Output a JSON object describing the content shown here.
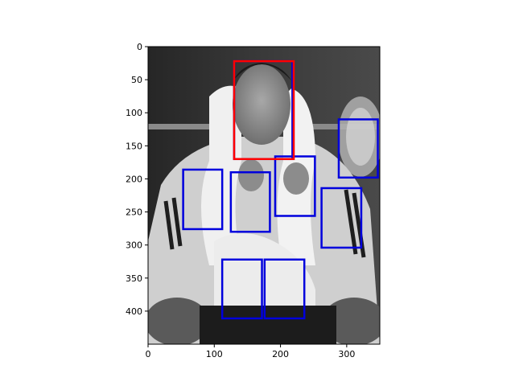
{
  "chart_data": {
    "type": "image-with-bounding-boxes",
    "title": "",
    "xlabel": "",
    "ylabel": "",
    "image": {
      "name": "grayscale-photo",
      "width": 350,
      "height": 450
    },
    "xlim": [
      0,
      350
    ],
    "ylim": [
      450,
      0
    ],
    "y_axis_inverted": true,
    "x_ticks": [
      0,
      100,
      200,
      300
    ],
    "y_ticks": [
      0,
      50,
      100,
      150,
      200,
      250,
      300,
      350,
      400
    ],
    "grid": false,
    "legend": "none",
    "colors": {
      "red_box": "#ff0000",
      "blue_box": "#0000dd",
      "axis": "#000000",
      "tick_label": "#000000"
    },
    "boxes": [
      {
        "color": "red",
        "x0": 130,
        "y0": 22,
        "x1": 220,
        "y1": 170
      },
      {
        "color": "blue",
        "x0": 130,
        "y0": 22,
        "x1": 218,
        "y1": 170
      },
      {
        "color": "blue",
        "x0": 288,
        "y0": 110,
        "x1": 347,
        "y1": 198
      },
      {
        "color": "blue",
        "x0": 53,
        "y0": 186,
        "x1": 112,
        "y1": 276
      },
      {
        "color": "blue",
        "x0": 125,
        "y0": 190,
        "x1": 184,
        "y1": 280
      },
      {
        "color": "blue",
        "x0": 192,
        "y0": 166,
        "x1": 252,
        "y1": 256
      },
      {
        "color": "blue",
        "x0": 262,
        "y0": 214,
        "x1": 322,
        "y1": 304
      },
      {
        "color": "blue",
        "x0": 112,
        "y0": 322,
        "x1": 172,
        "y1": 411
      },
      {
        "color": "blue",
        "x0": 176,
        "y0": 322,
        "x1": 236,
        "y1": 411
      }
    ]
  }
}
